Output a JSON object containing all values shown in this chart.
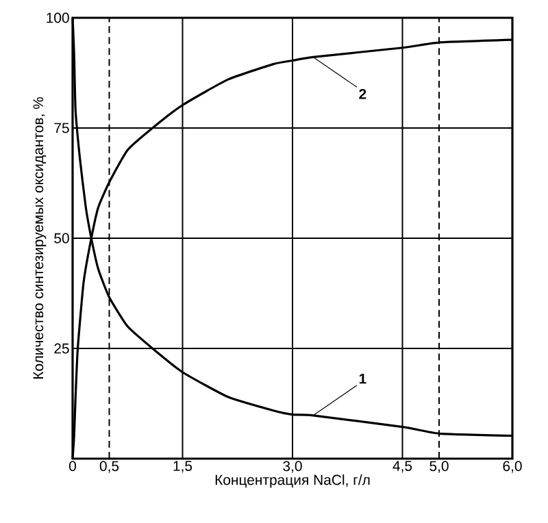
{
  "chart_data": {
    "type": "line",
    "xlabel": "Концентрация NaCl, г/л",
    "ylabel": "Количество синтезируемых оксидантов, %",
    "xlim": [
      0,
      6.0
    ],
    "ylim": [
      0,
      100
    ],
    "xticks": [
      0,
      {
        "value": 0.5,
        "label": "0,5"
      },
      {
        "value": 1.5,
        "label": "1,5"
      },
      {
        "value": 3.0,
        "label": "3,0"
      },
      {
        "value": 4.5,
        "label": "4,5"
      },
      {
        "value": 5.0,
        "label": "5,0"
      },
      {
        "value": 6.0,
        "label": "6,0"
      }
    ],
    "yticks": [
      25,
      50,
      75,
      100
    ],
    "grid": "y",
    "marker": "none",
    "line_style": "solid",
    "series": [
      {
        "color": "#000000",
        "x": [
          0,
          0.02,
          0.04,
          0.1,
          0.18,
          0.255,
          0.35,
          0.5,
          0.75,
          1.09,
          1.5,
          2.12,
          2.74,
          3.0,
          3.28,
          4.5,
          5.0,
          6.0
        ],
        "values": [
          100,
          92,
          79,
          68,
          57,
          50,
          43,
          36.6,
          30,
          25,
          19.6,
          14,
          10.9,
          10,
          9.8,
          7.2,
          5.7,
          5.2
        ]
      },
      {
        "color": "#000000",
        "x": [
          0,
          0.02,
          0.04,
          0.07,
          0.15,
          0.255,
          0.35,
          0.5,
          0.75,
          1.09,
          1.5,
          2.12,
          2.74,
          3.0,
          3.28,
          4.5,
          5.0,
          6.0
        ],
        "values": [
          0,
          5,
          14,
          25,
          40,
          50,
          57,
          62.7,
          70,
          75,
          80.2,
          86,
          89.5,
          90.3,
          91.1,
          93.2,
          94.4,
          95
        ]
      }
    ],
    "ref_lines": [
      {
        "axis": "x",
        "value": 0.5,
        "line_style": "dashed",
        "color": "#000000"
      },
      {
        "axis": "x",
        "value": 1.5,
        "line_style": "solid",
        "color": "#000000"
      },
      {
        "axis": "x",
        "value": 3.0,
        "line_style": "solid",
        "color": "#000000"
      },
      {
        "axis": "x",
        "value": 4.5,
        "line_style": "solid",
        "color": "#000000"
      },
      {
        "axis": "x",
        "value": 5.0,
        "line_style": "dashed",
        "color": "#000000"
      }
    ],
    "annotations": [
      {
        "text": "1",
        "x": 3.28,
        "y": 9.8
      },
      {
        "text": "2",
        "x": 3.28,
        "y": 91.1
      }
    ]
  }
}
